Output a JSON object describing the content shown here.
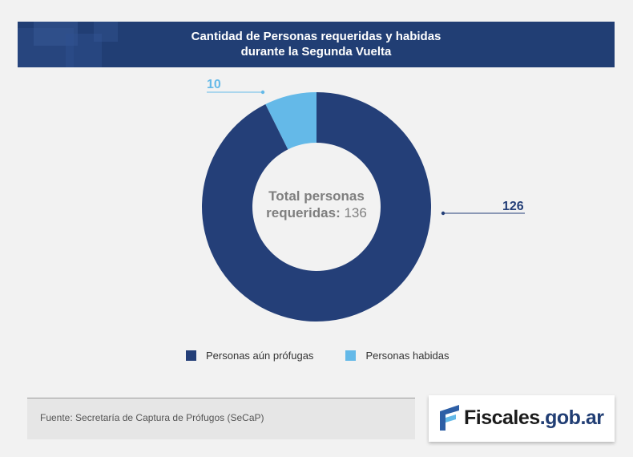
{
  "header": {
    "title_line1": "Cantidad de Personas requeridas y habidas",
    "title_line2": "durante la Segunda Vuelta"
  },
  "chart_data": {
    "type": "pie",
    "variant": "donut",
    "categories": [
      "Personas aún prófugas",
      "Personas habidas"
    ],
    "values": [
      126,
      10
    ],
    "colors": [
      "#243f78",
      "#64b9e8"
    ],
    "data_labels": [
      "126",
      "10"
    ],
    "center_label": {
      "text": "Total personas requeridas:",
      "value": "136"
    },
    "legend": {
      "position": "bottom",
      "entries": [
        "Personas aún prófugas",
        "Personas habidas"
      ]
    }
  },
  "center": {
    "line1": "Total personas",
    "line2": "requeridas:",
    "value": "136"
  },
  "legend": {
    "item1": "Personas aún prófugas",
    "item2": "Personas habidas"
  },
  "footer": {
    "source": "Fuente: Secretaría de Captura de Prófugos (SeCaP)",
    "logo_main": "Fiscales",
    "logo_suffix": ".gob.ar"
  }
}
